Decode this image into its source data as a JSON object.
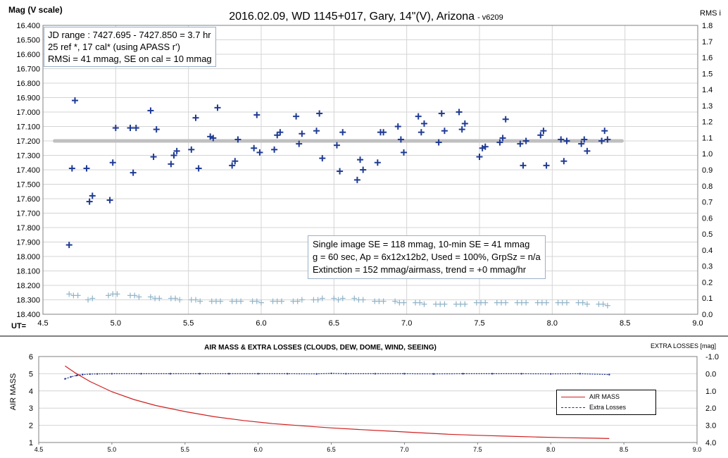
{
  "chart_data": [
    {
      "type": "scatter",
      "title": "2016.02.09,  WD 1145+017,  Gary,  14\"(V), Arizona",
      "title_suffix": "- v6209",
      "ylabel": "Mag (V scale)",
      "y2label": "RMS i",
      "xlabel": "UT=",
      "xlim": [
        4.5,
        9.0
      ],
      "ylim": [
        16.4,
        18.4
      ],
      "y_inverted": true,
      "y2lim": [
        0.0,
        1.8
      ],
      "xticks": [
        "4.5",
        "5.0",
        "5.5",
        "6.0",
        "6.5",
        "7.0",
        "7.5",
        "8.0",
        "8.5",
        "9.0"
      ],
      "yticks": [
        "16.400",
        "16.500",
        "16.600",
        "16.700",
        "16.800",
        "16.900",
        "17.000",
        "17.100",
        "17.200",
        "17.300",
        "17.400",
        "17.500",
        "17.600",
        "17.700",
        "17.800",
        "17.900",
        "18.000",
        "18.100",
        "18.200",
        "18.300",
        "18.400"
      ],
      "y2ticks": [
        "0.0",
        "0.1",
        "0.2",
        "0.3",
        "0.4",
        "0.5",
        "0.6",
        "0.7",
        "0.8",
        "0.9",
        "1.0",
        "1.1",
        "1.2",
        "1.3",
        "1.4",
        "1.5",
        "1.6",
        "1.7",
        "1.8"
      ],
      "grid": true,
      "colors": {
        "mag": "#1f3a93",
        "rms": "#8fb3c8",
        "fit": "#c0c0c0",
        "grid": "#d4d4d4"
      },
      "series": [
        {
          "key": "mag",
          "marker": "plus",
          "x": [
            4.68,
            4.7,
            4.72,
            4.8,
            4.82,
            4.84,
            4.96,
            4.98,
            5.0,
            5.1,
            5.12,
            5.14,
            5.24,
            5.26,
            5.28,
            5.38,
            5.4,
            5.42,
            5.52,
            5.55,
            5.57,
            5.65,
            5.67,
            5.7,
            5.8,
            5.82,
            5.84,
            5.95,
            5.97,
            5.99,
            6.09,
            6.11,
            6.13,
            6.24,
            6.26,
            6.28,
            6.38,
            6.4,
            6.42,
            6.52,
            6.54,
            6.56,
            6.66,
            6.68,
            6.7,
            6.8,
            6.82,
            6.84,
            6.94,
            6.96,
            6.98,
            7.08,
            7.1,
            7.12,
            7.22,
            7.24,
            7.26,
            7.36,
            7.38,
            7.4,
            7.5,
            7.52,
            7.54,
            7.64,
            7.66,
            7.68,
            7.78,
            7.8,
            7.82,
            7.92,
            7.94,
            7.96,
            8.06,
            8.08,
            8.1,
            8.2,
            8.22,
            8.24,
            8.34,
            8.36,
            8.38
          ],
          "y": [
            17.92,
            17.39,
            16.92,
            17.39,
            17.62,
            17.58,
            17.61,
            17.35,
            17.11,
            17.11,
            17.42,
            17.11,
            16.99,
            17.31,
            17.12,
            17.36,
            17.3,
            17.27,
            17.26,
            17.04,
            17.39,
            17.17,
            17.18,
            16.97,
            17.37,
            17.34,
            17.19,
            17.25,
            17.02,
            17.28,
            17.26,
            17.16,
            17.14,
            17.03,
            17.22,
            17.15,
            17.13,
            17.01,
            17.32,
            17.23,
            17.41,
            17.14,
            17.47,
            17.33,
            17.4,
            17.35,
            17.14,
            17.14,
            17.1,
            17.19,
            17.28,
            17.03,
            17.14,
            17.08,
            17.21,
            17.01,
            17.13,
            17.0,
            17.12,
            17.08,
            17.31,
            17.25,
            17.24,
            17.21,
            17.18,
            17.05,
            17.22,
            17.37,
            17.2,
            17.16,
            17.13,
            17.37,
            17.19,
            17.34,
            17.2,
            17.22,
            17.19,
            17.27,
            17.2,
            17.13,
            17.19
          ]
        },
        {
          "key": "fit",
          "marker": "line",
          "x": [
            4.58,
            8.48
          ],
          "y": [
            17.2,
            17.2
          ]
        },
        {
          "key": "rms",
          "marker": "plus",
          "x": [
            4.68,
            4.71,
            4.74,
            4.81,
            4.84,
            4.95,
            4.98,
            5.01,
            5.1,
            5.13,
            5.16,
            5.24,
            5.27,
            5.3,
            5.38,
            5.41,
            5.44,
            5.52,
            5.55,
            5.58,
            5.66,
            5.69,
            5.72,
            5.8,
            5.83,
            5.86,
            5.94,
            5.97,
            6.0,
            6.08,
            6.11,
            6.14,
            6.22,
            6.25,
            6.28,
            6.36,
            6.39,
            6.42,
            6.5,
            6.53,
            6.56,
            6.64,
            6.67,
            6.7,
            6.78,
            6.81,
            6.84,
            6.92,
            6.95,
            6.98,
            7.06,
            7.09,
            7.12,
            7.2,
            7.23,
            7.26,
            7.34,
            7.37,
            7.4,
            7.48,
            7.51,
            7.54,
            7.62,
            7.65,
            7.68,
            7.76,
            7.79,
            7.82,
            7.9,
            7.93,
            7.96,
            8.04,
            8.07,
            8.1,
            8.18,
            8.21,
            8.24,
            8.32,
            8.35,
            8.38
          ],
          "y": [
            18.26,
            18.27,
            18.27,
            18.3,
            18.29,
            18.27,
            18.26,
            18.26,
            18.27,
            18.27,
            18.28,
            18.28,
            18.29,
            18.29,
            18.29,
            18.29,
            18.3,
            18.3,
            18.3,
            18.31,
            18.31,
            18.31,
            18.31,
            18.31,
            18.31,
            18.31,
            18.31,
            18.31,
            18.32,
            18.31,
            18.31,
            18.31,
            18.31,
            18.31,
            18.3,
            18.3,
            18.3,
            18.29,
            18.29,
            18.3,
            18.29,
            18.29,
            18.3,
            18.3,
            18.31,
            18.31,
            18.31,
            18.31,
            18.32,
            18.32,
            18.32,
            18.32,
            18.33,
            18.33,
            18.33,
            18.33,
            18.33,
            18.33,
            18.33,
            18.32,
            18.32,
            18.32,
            18.32,
            18.32,
            18.32,
            18.32,
            18.32,
            18.32,
            18.32,
            18.32,
            18.32,
            18.32,
            18.32,
            18.32,
            18.32,
            18.32,
            18.33,
            18.33,
            18.33,
            18.34
          ]
        }
      ],
      "info_top": {
        "line1": "JD range  : 7427.695 - 7427.850  = 3.7 hr",
        "line2": " 25 ref *, 17 cal* (using APASS r')",
        "line3": "RMSi = 41 mmag, SE on cal = 10 mmag"
      },
      "info_mid": {
        "line1": "Single image SE = 118 mmag, 10-min SE = 41 mmag",
        "line2": "g = 60 sec, Ap = 6x12x12b2, Used = 100%, GrpSz = n/a",
        "line3": "Extinction = 152 mmag/airmass, trend = +0 mmag/hr"
      }
    },
    {
      "type": "line",
      "title": "AIR MASS & EXTRA LOSSES (CLOUDS, DEW, DOME, WIND, SEEING)",
      "ylabel": "AIR MASS",
      "y2label": "EXTRA LOSSES [mag]",
      "xlim": [
        4.5,
        9.0
      ],
      "ylim": [
        1,
        6
      ],
      "y2lim": [
        4.0,
        -1.0
      ],
      "xticks": [
        "4.5",
        "5.0",
        "5.5",
        "6.0",
        "6.5",
        "7.0",
        "7.5",
        "8.0",
        "8.5",
        "9.0"
      ],
      "yticks": [
        "1",
        "2",
        "3",
        "4",
        "5",
        "6"
      ],
      "y2ticks": [
        "4.0",
        "3.0",
        "2.0",
        "1.0",
        "0.0",
        "-1.0"
      ],
      "colors": {
        "airmass": "#d02020",
        "losses": "#1f2f8f"
      },
      "series": [
        {
          "name": "AIR MASS",
          "key": "airmass",
          "x": [
            4.68,
            4.75,
            4.85,
            5.0,
            5.15,
            5.3,
            5.5,
            5.7,
            5.9,
            6.1,
            6.3,
            6.5,
            6.7,
            6.9,
            7.1,
            7.3,
            7.5,
            7.7,
            7.9,
            8.1,
            8.3,
            8.4
          ],
          "y": [
            5.45,
            5.05,
            4.55,
            3.95,
            3.5,
            3.15,
            2.8,
            2.5,
            2.28,
            2.1,
            1.97,
            1.85,
            1.75,
            1.66,
            1.57,
            1.48,
            1.42,
            1.37,
            1.32,
            1.28,
            1.25,
            1.23
          ]
        },
        {
          "name": "Extra Losses",
          "key": "losses",
          "x": [
            4.68,
            4.72,
            4.76,
            4.8,
            4.85,
            4.9,
            5.0,
            5.2,
            5.4,
            5.6,
            5.8,
            6.0,
            6.2,
            6.4,
            6.5,
            6.6,
            6.8,
            7.0,
            7.2,
            7.4,
            7.6,
            7.8,
            8.0,
            8.2,
            8.4
          ],
          "y": [
            0.3,
            0.18,
            0.1,
            0.05,
            0.02,
            0.01,
            0.0,
            0.0,
            0.0,
            0.0,
            0.0,
            0.0,
            0.0,
            0.01,
            -0.02,
            0.0,
            0.0,
            0.0,
            0.01,
            0.0,
            0.0,
            0.0,
            0.01,
            0.0,
            0.05
          ]
        }
      ]
    }
  ]
}
